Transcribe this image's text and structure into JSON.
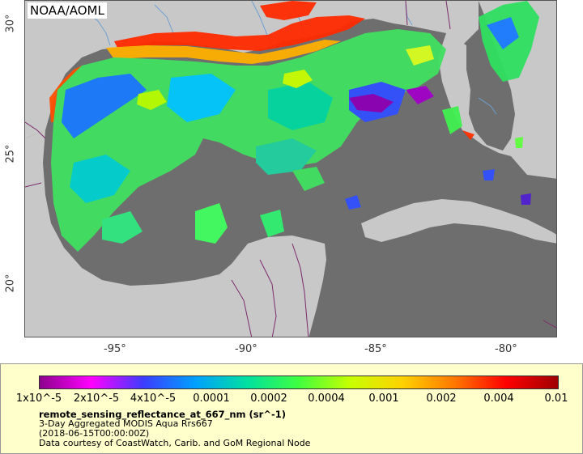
{
  "map": {
    "credit_badge": "NOAA/AOML",
    "colors": {
      "ocean_nodata": "#6e6e6e",
      "land": "#c8c8c8",
      "rivers": "#6f9fd0",
      "borders": "#7b2b6b"
    },
    "lat_ticks": [
      "30°",
      "25°",
      "20°"
    ],
    "lon_ticks": [
      "-95°",
      "-90°",
      "-85°",
      "-80°"
    ]
  },
  "legend": {
    "colorbar_labels": [
      "1x10^-5",
      "2x10^-5",
      "4x10^-5",
      "0.0001",
      "0.0002",
      "0.0004",
      "0.001",
      "0.002",
      "0.004",
      "0.01"
    ],
    "variable_name": "remote_sensing_reflectance_at_667_nm (sr^-1)",
    "product": "3-Day Aggregated MODIS Aqua Rrs667",
    "time": "(2018-06-15T00:00:00Z)",
    "credit": "Data courtesy of CoastWatch, Carib. and GoM Regional Node",
    "colorbar_colors": [
      "#8c008c",
      "#ff00ff",
      "#3c3cff",
      "#00a0ff",
      "#00e0a0",
      "#40ff40",
      "#c8ff00",
      "#ffd200",
      "#ff7800",
      "#ff0000",
      "#a00000"
    ]
  }
}
